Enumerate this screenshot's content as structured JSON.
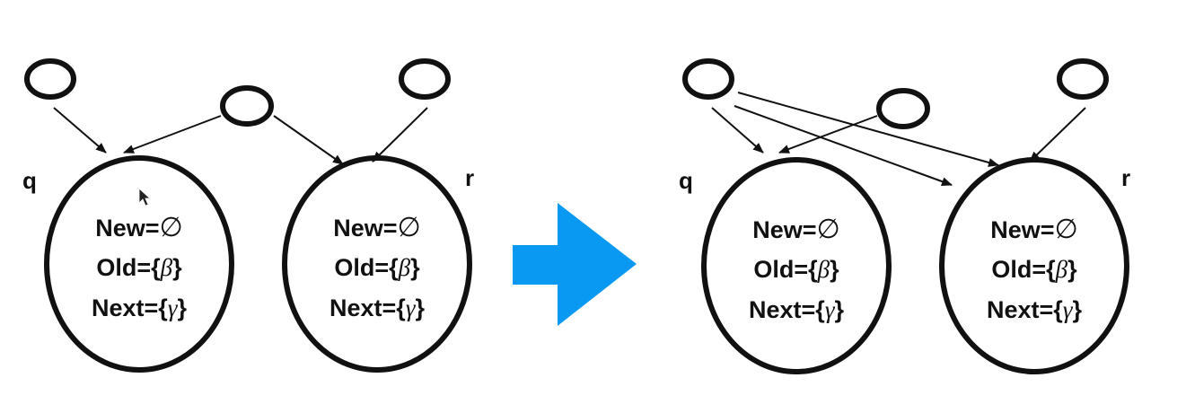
{
  "colors": {
    "stroke": "#111111",
    "arrow": "#0a99f2",
    "background": "#ffffff"
  },
  "labels": {
    "q": "q",
    "r": "r"
  },
  "fields": {
    "new_prefix": "New=",
    "new_value": "∅",
    "old_prefix": "Old={",
    "old_value": "β",
    "old_suffix": "}",
    "next_prefix": "Next={",
    "next_value": "γ",
    "next_suffix": "}"
  },
  "cursor": "mouse-pointer-icon",
  "transform_arrow": "right-arrow-icon"
}
